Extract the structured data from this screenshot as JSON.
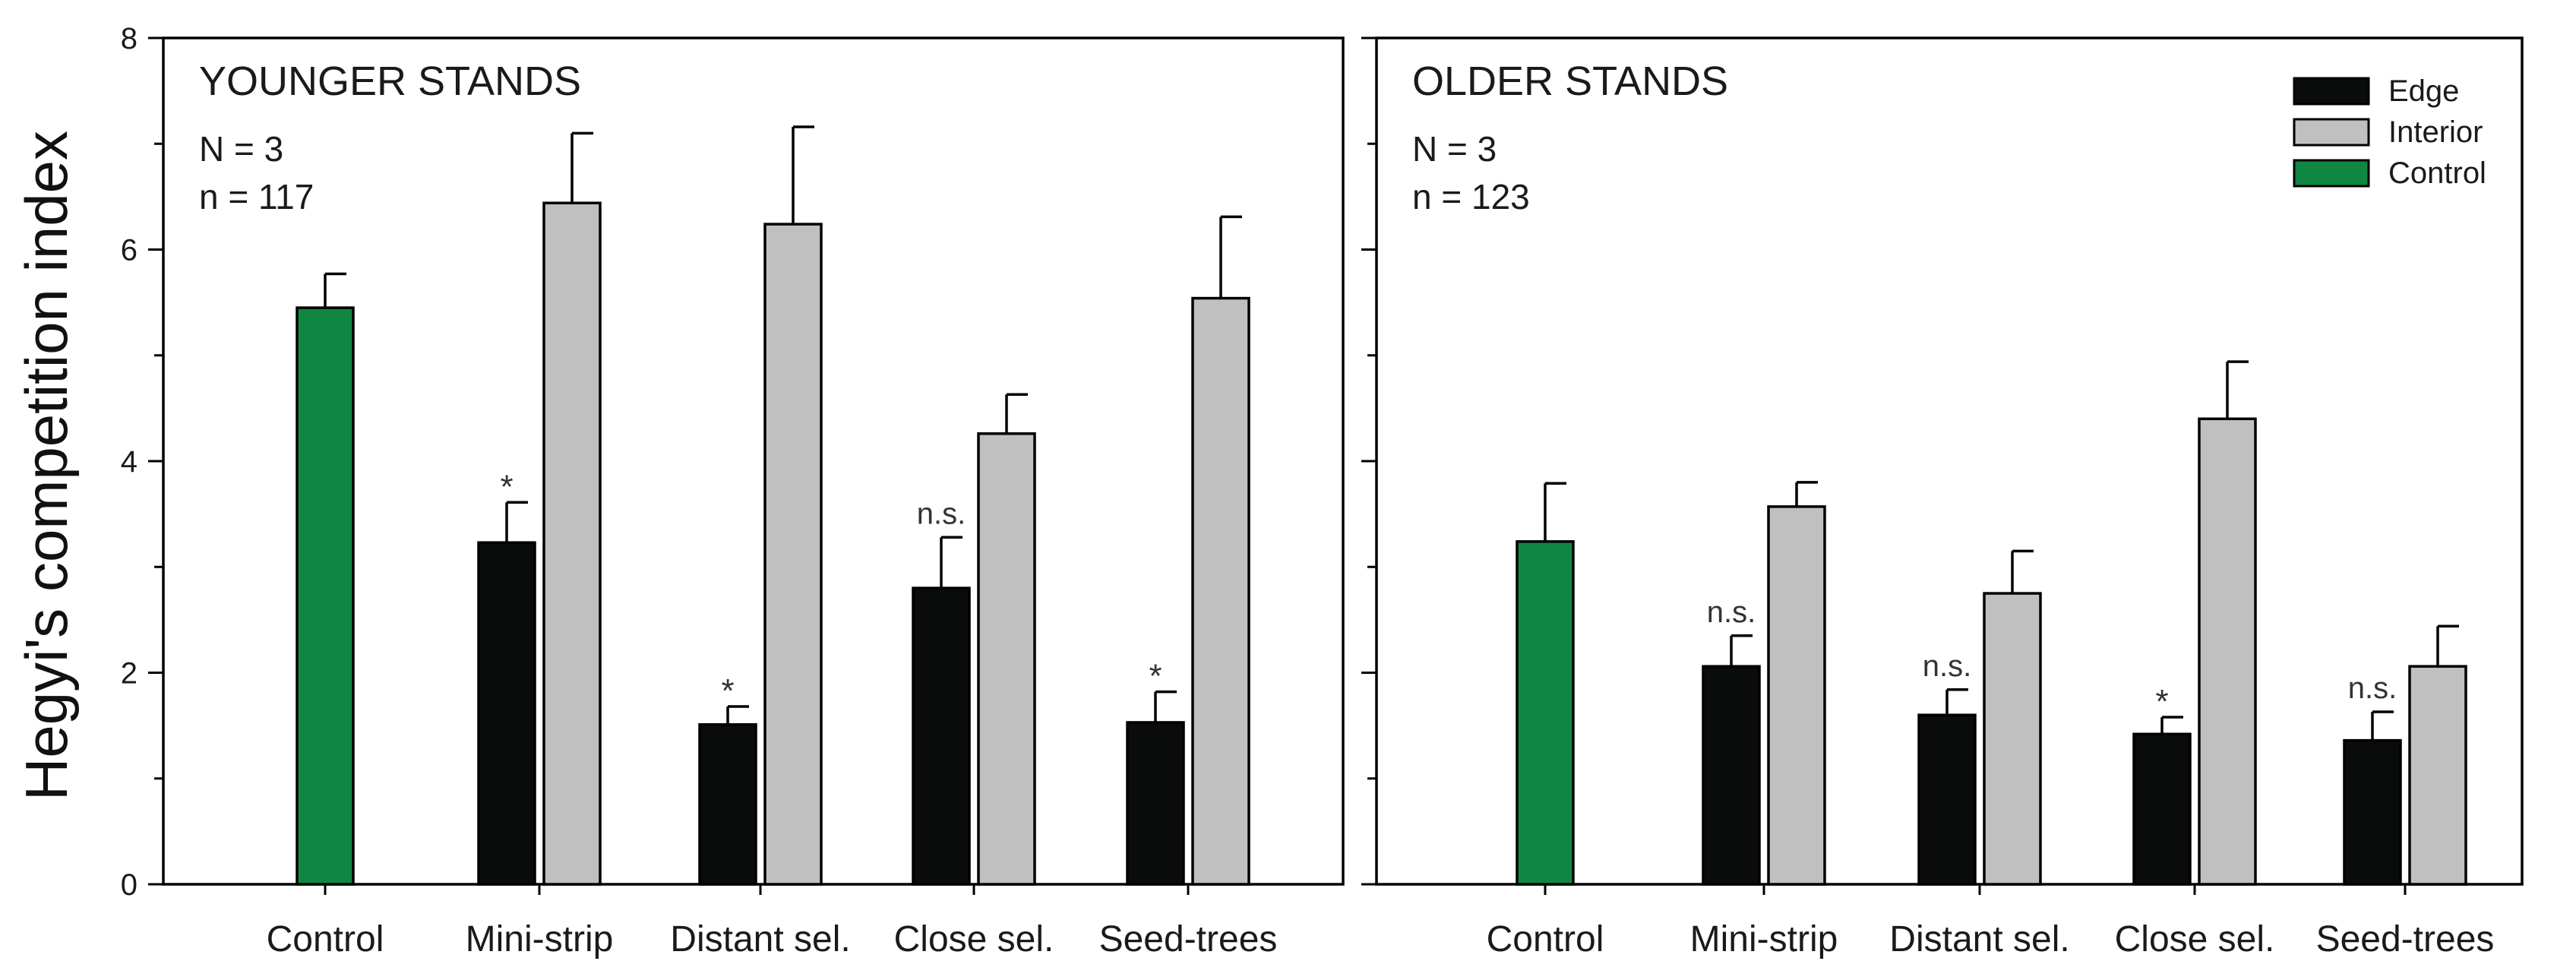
{
  "chart_data": {
    "type": "bar",
    "ylabel": "Hegyi's competition index",
    "ylim": [
      0,
      8
    ],
    "yticks": [
      0,
      2,
      4,
      6,
      8
    ],
    "legend": {
      "placement": "top-right",
      "entries": [
        {
          "name": "Edge",
          "color": "#0a0c0b"
        },
        {
          "name": "Interior",
          "color": "#c0c0c0"
        },
        {
          "name": "Control",
          "color": "#0f8743"
        }
      ]
    },
    "panels": [
      {
        "title": "YOUNGER STANDS",
        "N_label": "N = 3",
        "n_label": "n = 117",
        "categories": [
          "Control",
          "Mini-strip",
          "Distant sel.",
          "Close sel.",
          "Seed-trees"
        ],
        "control": {
          "value": 5.45,
          "error": 0.32
        },
        "edge": [
          null,
          3.23,
          1.51,
          2.8,
          1.53
        ],
        "edge_error": [
          null,
          0.38,
          0.17,
          0.48,
          0.29
        ],
        "interior": [
          null,
          6.44,
          6.24,
          4.26,
          5.54
        ],
        "interior_error": [
          null,
          0.66,
          0.92,
          0.37,
          0.77
        ],
        "significance": [
          null,
          "*",
          "*",
          "n.s.",
          "*"
        ]
      },
      {
        "title": "OLDER STANDS",
        "N_label": "N = 3",
        "n_label": "n = 123",
        "categories": [
          "Control",
          "Mini-strip",
          "Distant sel.",
          "Close sel.",
          "Seed-trees"
        ],
        "control": {
          "value": 3.24,
          "error": 0.55
        },
        "edge": [
          null,
          2.06,
          1.6,
          1.42,
          1.36
        ],
        "edge_error": [
          null,
          0.29,
          0.24,
          0.16,
          0.27
        ],
        "interior": [
          null,
          3.57,
          2.75,
          4.4,
          2.06
        ],
        "interior_error": [
          null,
          0.23,
          0.4,
          0.54,
          0.38
        ],
        "significance": [
          null,
          "n.s.",
          "n.s.",
          "*",
          "n.s."
        ]
      }
    ]
  }
}
